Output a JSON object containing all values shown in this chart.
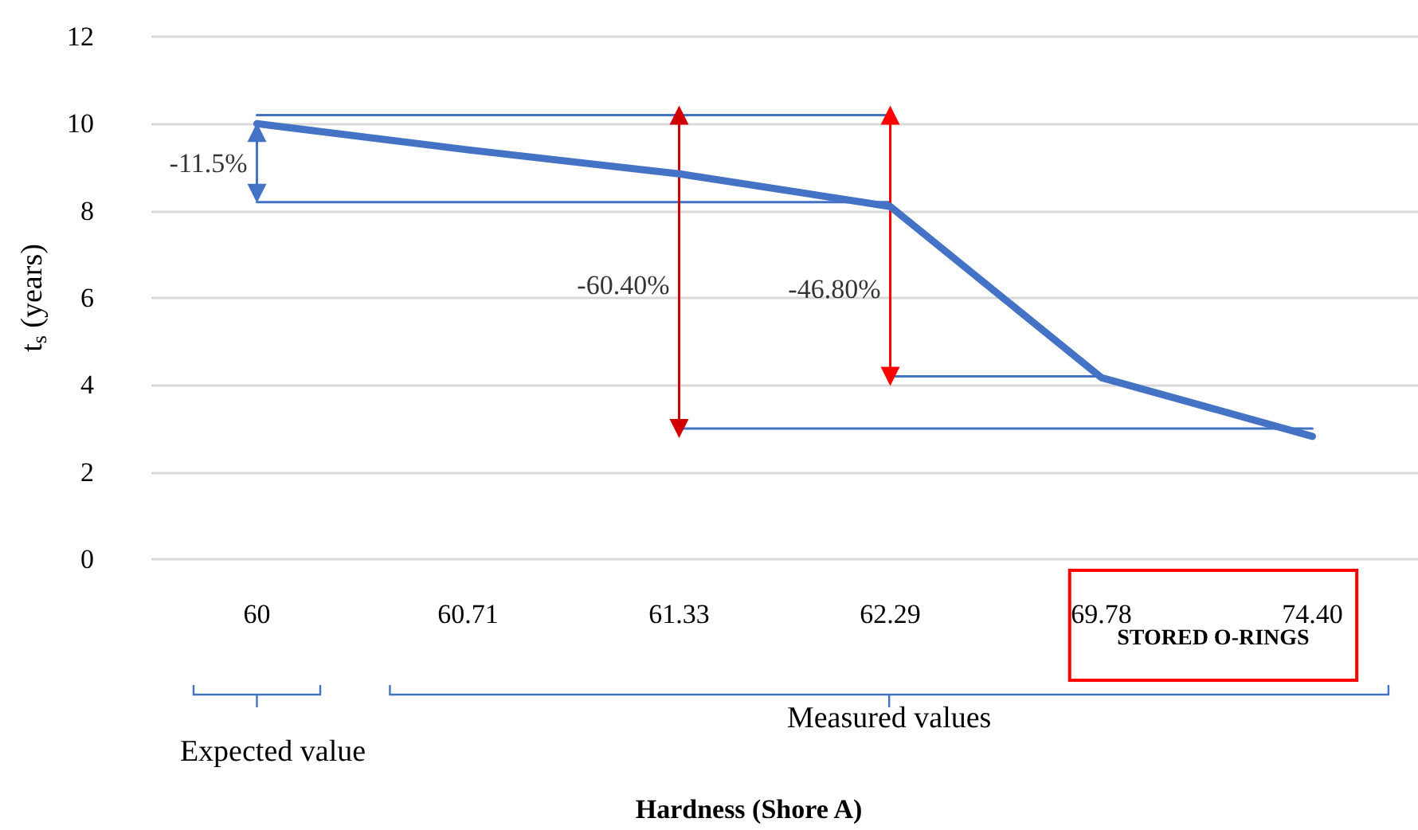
{
  "chart_data": {
    "type": "line",
    "ylabel": "t$_{s}$ (years)",
    "categories": [
      "60",
      "60.71",
      "61.33",
      "62.29",
      "69.78",
      "74.40"
    ],
    "series": [
      {
        "color": "#4472c4",
        "values": [
          10.0,
          9.4,
          8.85,
          8.1,
          4.17,
          2.82
        ]
      },
      {
        "color": "#4472c4",
        "x": [
          "60",
          "62.29"
        ],
        "values": [
          10.2,
          10.2
        ]
      },
      {
        "color": "#4472c4",
        "x": [
          "60",
          "62.29"
        ],
        "values": [
          8.2,
          8.2
        ]
      },
      {
        "color": "#4472c4",
        "x": [
          "62.29",
          "69.78"
        ],
        "values": [
          4.2,
          4.2
        ]
      },
      {
        "color": "#4472c4",
        "x": [
          "61.33",
          "74.40"
        ],
        "values": [
          3.0,
          3.0
        ]
      },
      {
        "color": "#4472c4",
        "x": [
          "60",
          "60"
        ],
        "values": [
          9.8,
          8.4
        ],
        "marker": "triangle"
      },
      {
        "color": "#d00000",
        "x": [
          "61.33",
          "61.33"
        ],
        "values": [
          10.2,
          3.0
        ],
        "marker": "triangle"
      },
      {
        "color": "#ff0000",
        "x": [
          "62.29",
          "62.29"
        ],
        "values": [
          10.2,
          4.2
        ],
        "marker": "triangle"
      }
    ],
    "ylim": [
      0,
      12
    ],
    "yticks": [
      0,
      2,
      4,
      6,
      8,
      10,
      12
    ],
    "grid": "y",
    "annotations": [
      {
        "text": "-11.5%",
        "x": "60",
        "y": 9.1
      },
      {
        "text": "-60.40%",
        "x": "61.33",
        "y": 6.3
      },
      {
        "text": "-46.80%",
        "x": "62.29",
        "y": 6.2
      },
      "STORED O-RINGS",
      "Expected value",
      "Measured values",
      "Hardness (Shore A)"
    ]
  }
}
